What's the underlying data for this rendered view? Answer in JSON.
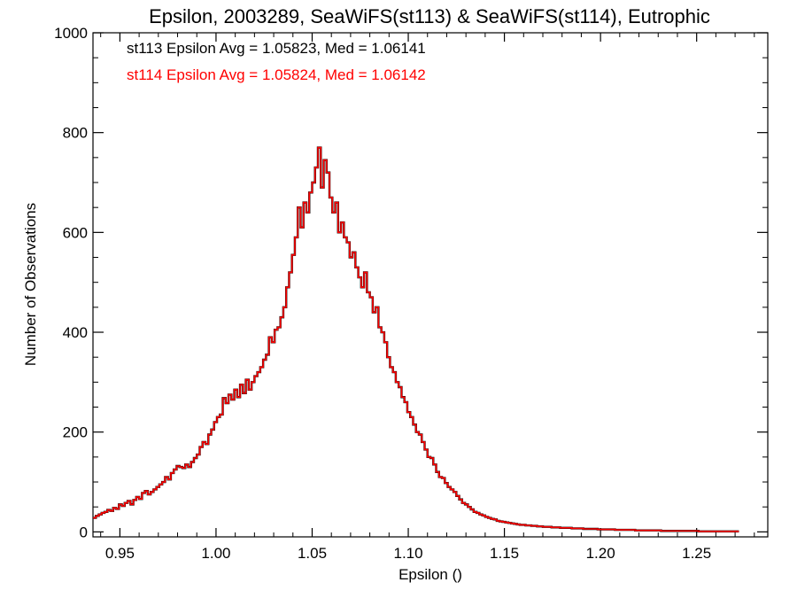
{
  "chart_data": {
    "type": "histogram-step",
    "title": "Epsilon, 2003289, SeaWiFS(st113) & SeaWiFS(st114), Eutrophic",
    "xlabel": "Epsilon ()",
    "ylabel": "Number of Observations",
    "xlim": [
      0.936,
      1.287
    ],
    "ylim": [
      -10,
      1000
    ],
    "xticks": [
      0.95,
      1.0,
      1.05,
      1.1,
      1.15,
      1.2,
      1.25
    ],
    "xtick_labels": [
      "0.95",
      "1.00",
      "1.05",
      "1.10",
      "1.15",
      "1.20",
      "1.25"
    ],
    "yticks": [
      0,
      200,
      400,
      600,
      800,
      1000
    ],
    "ytick_labels": [
      "0",
      "200",
      "400",
      "600",
      "800",
      "1000"
    ],
    "grid": false,
    "annotations": [
      {
        "text": "st113 Epsilon Avg = 1.05823, Med = 1.06141",
        "color": "#000000"
      },
      {
        "text": "st114 Epsilon Avg = 1.05824, Med = 1.06142",
        "color": "#ff0000"
      }
    ],
    "bin_start": 0.936,
    "bin_width": 0.0015,
    "series": [
      {
        "name": "st113",
        "color": "#000000",
        "values": [
          28,
          32,
          35,
          38,
          40,
          44,
          42,
          48,
          46,
          55,
          52,
          58,
          62,
          55,
          64,
          70,
          66,
          78,
          82,
          75,
          80,
          85,
          90,
          95,
          100,
          110,
          105,
          118,
          125,
          132,
          130,
          128,
          135,
          130,
          140,
          148,
          155,
          170,
          180,
          176,
          195,
          205,
          220,
          230,
          235,
          268,
          258,
          275,
          265,
          285,
          270,
          295,
          278,
          305,
          285,
          300,
          312,
          320,
          330,
          345,
          355,
          390,
          380,
          405,
          410,
          430,
          450,
          490,
          520,
          555,
          590,
          650,
          610,
          660,
          640,
          680,
          700,
          730,
          770,
          690,
          745,
          720,
          670,
          640,
          660,
          600,
          620,
          590,
          580,
          550,
          560,
          530,
          510,
          490,
          520,
          480,
          470,
          440,
          450,
          410,
          400,
          380,
          350,
          330,
          320,
          300,
          290,
          270,
          260,
          240,
          230,
          215,
          200,
          195,
          180,
          165,
          150,
          148,
          135,
          120,
          110,
          108,
          98,
          90,
          85,
          80,
          72,
          65,
          58,
          55,
          50,
          45,
          40,
          38,
          35,
          33,
          30,
          28,
          26,
          25,
          22,
          21,
          20,
          19,
          18,
          17,
          16,
          15,
          14,
          14,
          13,
          13,
          12,
          12,
          11,
          11,
          10,
          10,
          10,
          9,
          9,
          9,
          8,
          8,
          8,
          8,
          7,
          7,
          7,
          7,
          6,
          6,
          6,
          6,
          6,
          5,
          5,
          5,
          5,
          5,
          5,
          4,
          4,
          4,
          4,
          4,
          4,
          4,
          3,
          3,
          3,
          3,
          3,
          3,
          3,
          3,
          3,
          2,
          2,
          2,
          2,
          2,
          2,
          2,
          2,
          2,
          2,
          2,
          2,
          2,
          1,
          1,
          1,
          1,
          1,
          1,
          1,
          1,
          1,
          1,
          1,
          1,
          1,
          1
        ]
      },
      {
        "name": "st114",
        "color": "#ff0000",
        "values": [
          28,
          32,
          35,
          38,
          40,
          44,
          42,
          48,
          46,
          55,
          52,
          58,
          62,
          55,
          64,
          70,
          66,
          78,
          82,
          75,
          80,
          85,
          90,
          95,
          100,
          110,
          105,
          118,
          125,
          132,
          130,
          128,
          135,
          130,
          140,
          148,
          155,
          170,
          180,
          176,
          195,
          205,
          220,
          230,
          235,
          268,
          258,
          275,
          265,
          285,
          270,
          295,
          278,
          305,
          285,
          300,
          312,
          320,
          330,
          345,
          355,
          390,
          380,
          405,
          410,
          430,
          450,
          490,
          520,
          555,
          590,
          650,
          610,
          660,
          640,
          680,
          700,
          730,
          770,
          690,
          745,
          720,
          670,
          640,
          660,
          600,
          620,
          590,
          580,
          550,
          560,
          530,
          510,
          490,
          520,
          480,
          470,
          440,
          450,
          410,
          400,
          380,
          350,
          330,
          320,
          300,
          290,
          270,
          260,
          240,
          230,
          215,
          200,
          195,
          180,
          165,
          150,
          148,
          135,
          120,
          110,
          108,
          98,
          90,
          85,
          80,
          72,
          65,
          58,
          55,
          50,
          45,
          40,
          38,
          35,
          33,
          30,
          28,
          26,
          25,
          22,
          21,
          20,
          19,
          18,
          17,
          16,
          15,
          14,
          14,
          13,
          13,
          12,
          12,
          11,
          11,
          10,
          10,
          10,
          9,
          9,
          9,
          8,
          8,
          8,
          8,
          7,
          7,
          7,
          7,
          6,
          6,
          6,
          6,
          6,
          5,
          5,
          5,
          5,
          5,
          5,
          4,
          4,
          4,
          4,
          4,
          4,
          4,
          3,
          3,
          3,
          3,
          3,
          3,
          3,
          3,
          3,
          2,
          2,
          2,
          2,
          2,
          2,
          2,
          2,
          2,
          2,
          2,
          2,
          2,
          1,
          1,
          1,
          1,
          1,
          1,
          1,
          1,
          1,
          1,
          1,
          1,
          1,
          1
        ]
      }
    ]
  }
}
